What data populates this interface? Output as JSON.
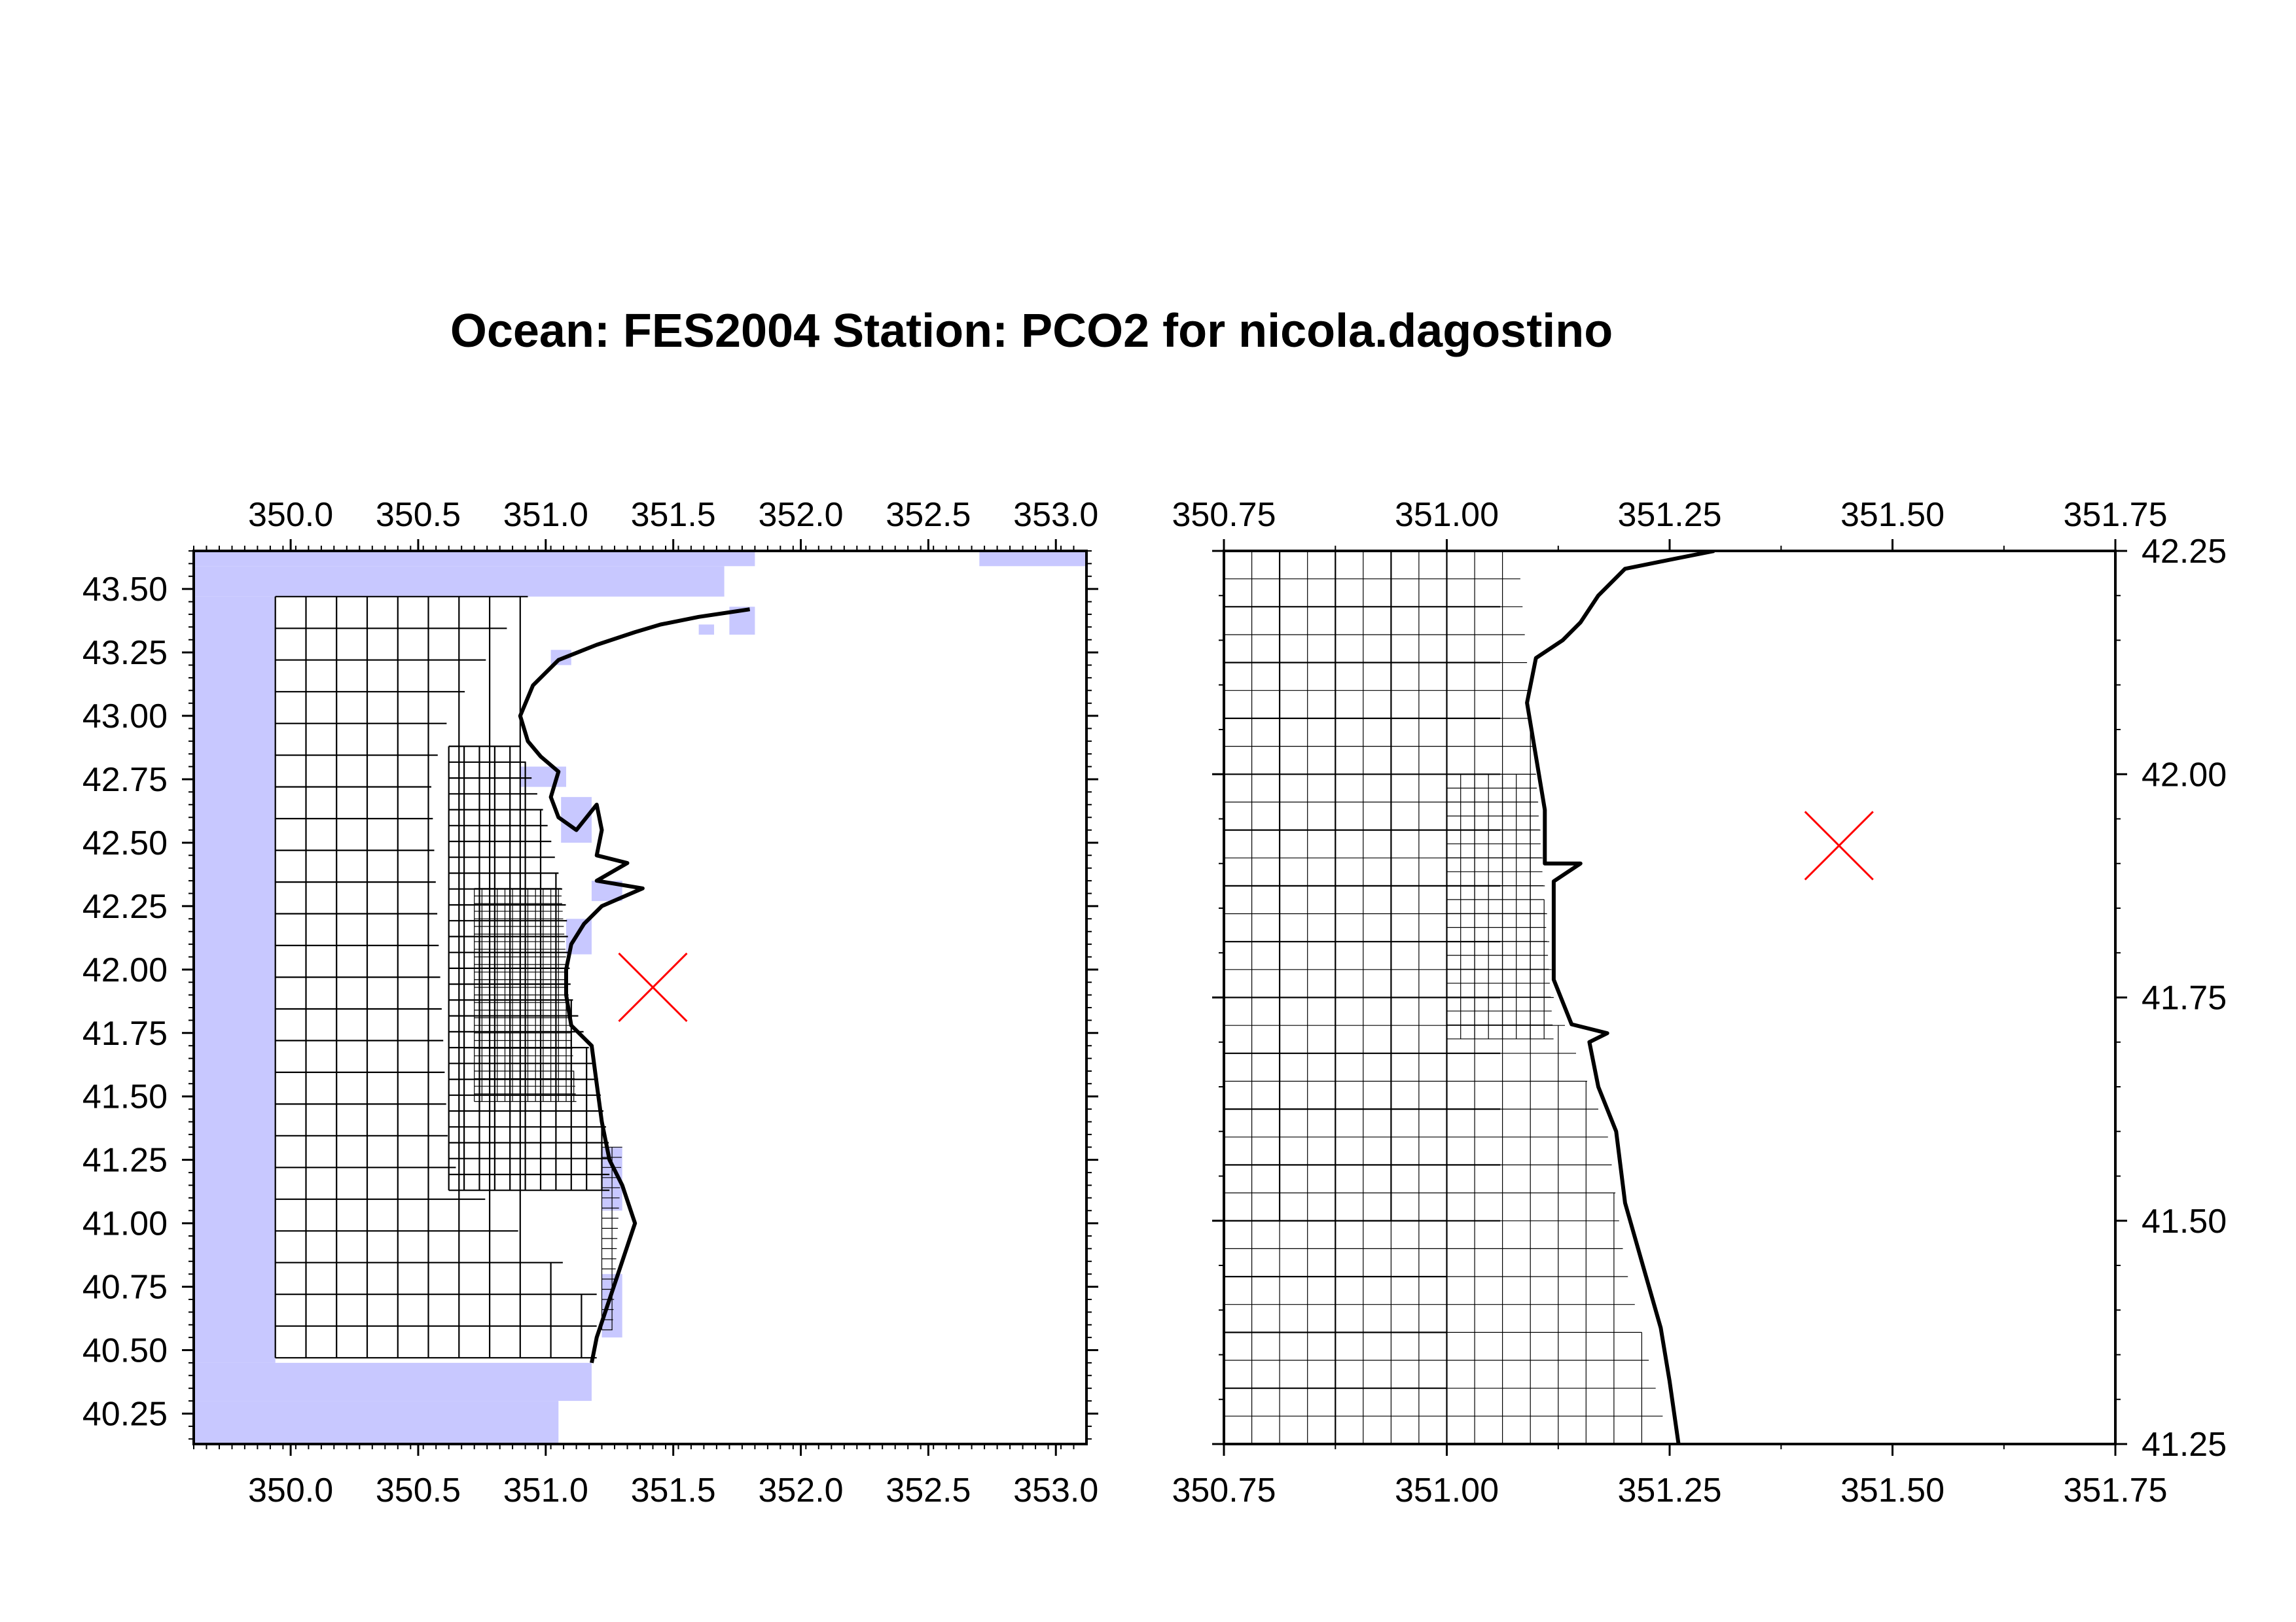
{
  "title": "Ocean: FES2004  Station: PCO2  for nicola.dagostino",
  "colors": {
    "mask": "#c8c8ff",
    "mask_line": "#e2e2ff",
    "grid": "#000000",
    "station": "#ff0000",
    "frame": "#000000"
  },
  "chart_data": [
    {
      "type": "map",
      "panel": "left",
      "xlim": [
        349.62,
        353.12
      ],
      "ylim": [
        40.13,
        43.65
      ],
      "x_ticks": [
        "350.0",
        "350.5",
        "351.0",
        "351.5",
        "352.0",
        "352.5",
        "353.0"
      ],
      "y_ticks": [
        "40.25",
        "40.50",
        "40.75",
        "41.00",
        "41.25",
        "41.50",
        "41.75",
        "42.00",
        "42.25",
        "42.50",
        "42.75",
        "43.00",
        "43.25",
        "43.50"
      ],
      "x_tick_values": [
        350.0,
        350.5,
        351.0,
        351.5,
        352.0,
        352.5,
        353.0
      ],
      "y_tick_values": [
        40.25,
        40.5,
        40.75,
        41.0,
        41.25,
        41.5,
        41.75,
        42.0,
        42.25,
        42.5,
        42.75,
        43.0,
        43.25,
        43.5
      ],
      "station": {
        "lon": 351.42,
        "lat": 41.93
      },
      "coastline": [
        [
          351.8,
          43.42
        ],
        [
          351.6,
          43.39
        ],
        [
          351.45,
          43.36
        ],
        [
          351.35,
          43.33
        ],
        [
          351.2,
          43.28
        ],
        [
          351.05,
          43.22
        ],
        [
          350.95,
          43.12
        ],
        [
          350.9,
          43.0
        ],
        [
          350.93,
          42.9
        ],
        [
          350.98,
          42.84
        ],
        [
          351.05,
          42.78
        ],
        [
          351.02,
          42.68
        ],
        [
          351.05,
          42.6
        ],
        [
          351.12,
          42.55
        ],
        [
          351.2,
          42.65
        ],
        [
          351.22,
          42.55
        ],
        [
          351.2,
          42.45
        ],
        [
          351.32,
          42.42
        ],
        [
          351.2,
          42.35
        ],
        [
          351.38,
          42.32
        ],
        [
          351.22,
          42.25
        ],
        [
          351.15,
          42.18
        ],
        [
          351.1,
          42.1
        ],
        [
          351.08,
          42.0
        ],
        [
          351.08,
          41.9
        ],
        [
          351.1,
          41.78
        ],
        [
          351.18,
          41.7
        ],
        [
          351.2,
          41.55
        ],
        [
          351.22,
          41.4
        ],
        [
          351.25,
          41.25
        ],
        [
          351.3,
          41.15
        ],
        [
          351.35,
          41.0
        ],
        [
          351.3,
          40.85
        ],
        [
          351.25,
          40.7
        ],
        [
          351.2,
          40.55
        ],
        [
          351.18,
          40.45
        ]
      ],
      "mask_cells": [
        {
          "lon0": 349.62,
          "lon1": 351.82,
          "lat0": 43.59,
          "lat1": 43.65
        },
        {
          "lon0": 349.62,
          "lon1": 351.7,
          "lat0": 43.47,
          "lat1": 43.59
        },
        {
          "lon0": 349.62,
          "lon1": 349.94,
          "lat0": 40.45,
          "lat1": 43.47
        },
        {
          "lon0": 349.62,
          "lon1": 351.18,
          "lat0": 40.3,
          "lat1": 40.45
        },
        {
          "lon0": 349.62,
          "lon1": 351.05,
          "lat0": 40.13,
          "lat1": 40.3
        },
        {
          "lon0": 352.7,
          "lon1": 353.12,
          "lat0": 43.59,
          "lat1": 43.65
        },
        {
          "lon0": 351.72,
          "lon1": 351.82,
          "lat0": 43.32,
          "lat1": 43.43
        },
        {
          "lon0": 351.6,
          "lon1": 351.66,
          "lat0": 43.32,
          "lat1": 43.36
        },
        {
          "lon0": 351.02,
          "lon1": 351.1,
          "lat0": 43.2,
          "lat1": 43.26
        },
        {
          "lon0": 350.9,
          "lon1": 351.08,
          "lat0": 42.72,
          "lat1": 42.8
        },
        {
          "lon0": 351.06,
          "lon1": 351.18,
          "lat0": 42.5,
          "lat1": 42.68
        },
        {
          "lon0": 351.18,
          "lon1": 351.3,
          "lat0": 42.27,
          "lat1": 42.35
        },
        {
          "lon0": 351.08,
          "lon1": 351.18,
          "lat0": 42.06,
          "lat1": 42.2
        },
        {
          "lon0": 351.22,
          "lon1": 351.3,
          "lat0": 41.05,
          "lat1": 41.3
        },
        {
          "lon0": 351.22,
          "lon1": 351.3,
          "lat0": 40.55,
          "lat1": 40.8
        }
      ],
      "grid_zones": [
        {
          "step_lon": 0.12,
          "step_lat": 0.125,
          "lon0": 349.94,
          "lat0": 40.45,
          "lat1": 43.47,
          "lon_max": [
            [
              43.47,
              350.93
            ],
            [
              43.0,
              350.62
            ],
            [
              42.75,
              350.55
            ],
            [
              41.25,
              350.62
            ],
            [
              41.0,
              350.85
            ],
            [
              40.75,
              351.2
            ],
            [
              40.45,
              351.2
            ]
          ]
        },
        {
          "step_lon": 0.06,
          "step_lat": 0.0625,
          "lon0": 350.62,
          "lat0": 41.1,
          "lat1": 42.88,
          "lon_max": [
            [
              42.88,
              350.9
            ],
            [
              42.6,
              351.0
            ],
            [
              42.25,
              351.08
            ],
            [
              41.9,
              351.1
            ],
            [
              41.6,
              351.2
            ],
            [
              41.3,
              351.25
            ],
            [
              41.1,
              351.25
            ]
          ]
        },
        {
          "step_lon": 0.03,
          "step_lat": 0.03,
          "lon0": 350.72,
          "lat0": 41.48,
          "lat1": 42.32,
          "lon_max": [
            [
              42.32,
              351.06
            ],
            [
              41.48,
              351.12
            ]
          ]
        },
        {
          "step_lon": 0.04,
          "step_lat": 0.04,
          "lon0": 351.22,
          "lat0": 40.55,
          "lat1": 41.3,
          "lon_max": [
            [
              41.3,
              351.3
            ],
            [
              40.55,
              351.26
            ]
          ]
        }
      ]
    },
    {
      "type": "map",
      "panel": "right",
      "xlim": [
        350.75,
        351.75
      ],
      "ylim": [
        41.25,
        42.25
      ],
      "x_ticks": [
        "350.75",
        "351.00",
        "351.25",
        "351.50",
        "351.75"
      ],
      "y_ticks": [
        "41.25",
        "41.50",
        "41.75",
        "42.00",
        "42.25"
      ],
      "x_tick_values": [
        350.75,
        351.0,
        351.25,
        351.5,
        351.75
      ],
      "y_tick_values": [
        41.25,
        41.5,
        41.75,
        42.0,
        42.25
      ],
      "station": {
        "lon": 351.44,
        "lat": 41.92
      },
      "coastline": [
        [
          351.3,
          42.25
        ],
        [
          351.25,
          42.24
        ],
        [
          351.2,
          42.23
        ],
        [
          351.17,
          42.2
        ],
        [
          351.15,
          42.17
        ],
        [
          351.13,
          42.15
        ],
        [
          351.1,
          42.13
        ],
        [
          351.09,
          42.08
        ],
        [
          351.1,
          42.02
        ],
        [
          351.11,
          41.96
        ],
        [
          351.11,
          41.9
        ],
        [
          351.15,
          41.9
        ],
        [
          351.12,
          41.88
        ],
        [
          351.12,
          41.82
        ],
        [
          351.12,
          41.77
        ],
        [
          351.14,
          41.72
        ],
        [
          351.18,
          41.71
        ],
        [
          351.16,
          41.7
        ],
        [
          351.17,
          41.65
        ],
        [
          351.19,
          41.6
        ],
        [
          351.2,
          41.52
        ],
        [
          351.22,
          41.45
        ],
        [
          351.24,
          41.38
        ],
        [
          351.25,
          41.32
        ],
        [
          351.26,
          41.25
        ]
      ],
      "grid_zones": [
        {
          "step_lon": 0.0625,
          "step_lat": 0.0625,
          "lon0": 350.75,
          "lat0": 41.5,
          "lat1": 42.25,
          "lon_max": [
            [
              42.25,
              351.06
            ],
            [
              41.5,
              351.06
            ]
          ]
        },
        {
          "step_lon": 0.03125,
          "step_lat": 0.03125,
          "lon0": 350.75,
          "lat0": 41.25,
          "lat1": 42.25,
          "lon_max": [
            [
              42.25,
              351.08
            ],
            [
              42.0,
              351.1
            ],
            [
              41.75,
              351.12
            ],
            [
              41.6,
              351.18
            ],
            [
              41.45,
              351.2
            ],
            [
              41.25,
              351.25
            ]
          ]
        },
        {
          "step_lon": 0.125,
          "step_lat": 0.0625,
          "lon0": 350.75,
          "lat0": 41.25,
          "lat1": 41.5,
          "lon_max": [
            [
              41.5,
              351.0
            ],
            [
              41.25,
              351.0
            ]
          ]
        },
        {
          "step_lon": 0.0156,
          "step_lat": 0.0156,
          "lon0": 351.0,
          "lat0": 41.7,
          "lat1": 42.0,
          "lon_max": [
            [
              42.0,
              351.1
            ],
            [
              41.7,
              351.12
            ]
          ]
        }
      ]
    }
  ]
}
